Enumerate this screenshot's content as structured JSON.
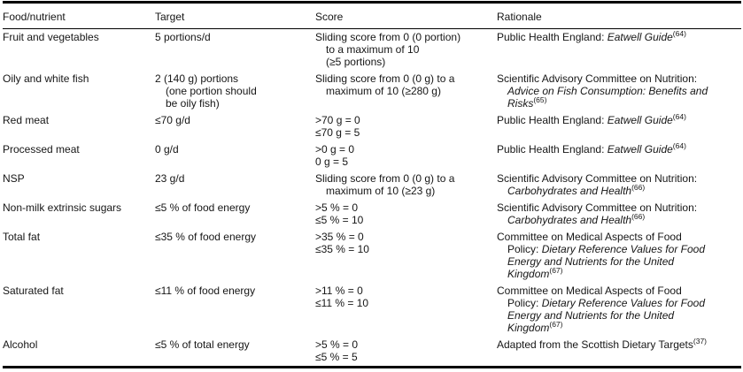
{
  "table": {
    "columns": [
      "Food/nutrient",
      "Target",
      "Score",
      "Rationale"
    ],
    "rows": [
      {
        "food": "Fruit and vegetables",
        "target": [
          {
            "indent": false,
            "parts": [
              {
                "text": "5 portions/d"
              }
            ]
          }
        ],
        "score": [
          {
            "indent": false,
            "parts": [
              {
                "text": "Sliding score from 0 (0 portion)"
              }
            ]
          },
          {
            "indent": true,
            "parts": [
              {
                "text": "to a maximum of 10"
              }
            ]
          },
          {
            "indent": true,
            "parts": [
              {
                "text": "(≥5 portions)"
              }
            ]
          }
        ],
        "rationale": [
          {
            "indent": false,
            "parts": [
              {
                "text": "Public Health England: "
              },
              {
                "text": "Eatwell Guide",
                "italic": true
              },
              {
                "text": "(64)",
                "sup": true
              }
            ]
          }
        ]
      },
      {
        "food": "Oily and white fish",
        "target": [
          {
            "indent": false,
            "parts": [
              {
                "text": "2 (140 g) portions"
              }
            ]
          },
          {
            "indent": true,
            "parts": [
              {
                "text": "(one portion should"
              }
            ]
          },
          {
            "indent": true,
            "parts": [
              {
                "text": "be oily fish)"
              }
            ]
          }
        ],
        "score": [
          {
            "indent": false,
            "parts": [
              {
                "text": "Sliding score from 0 (0 g) to a"
              }
            ]
          },
          {
            "indent": true,
            "parts": [
              {
                "text": "maximum of 10 (≥280 g)"
              }
            ]
          }
        ],
        "rationale": [
          {
            "indent": false,
            "parts": [
              {
                "text": "Scientific Advisory Committee on Nutrition:"
              }
            ]
          },
          {
            "indent": true,
            "parts": [
              {
                "text": "Advice on Fish Consumption: Benefits and",
                "italic": true
              }
            ]
          },
          {
            "indent": true,
            "parts": [
              {
                "text": "Risks",
                "italic": true
              },
              {
                "text": "(65)",
                "sup": true
              }
            ]
          }
        ]
      },
      {
        "food": "Red meat",
        "target": [
          {
            "indent": false,
            "parts": [
              {
                "text": "≤70 g/d"
              }
            ]
          }
        ],
        "score": [
          {
            "indent": false,
            "parts": [
              {
                "text": ">70 g = 0"
              }
            ]
          },
          {
            "indent": false,
            "parts": [
              {
                "text": "≤70 g = 5"
              }
            ]
          }
        ],
        "rationale": [
          {
            "indent": false,
            "parts": [
              {
                "text": "Public Health England: "
              },
              {
                "text": "Eatwell Guide",
                "italic": true
              },
              {
                "text": "(64)",
                "sup": true
              }
            ]
          }
        ]
      },
      {
        "food": "Processed meat",
        "target": [
          {
            "indent": false,
            "parts": [
              {
                "text": "0 g/d"
              }
            ]
          }
        ],
        "score": [
          {
            "indent": false,
            "parts": [
              {
                "text": ">0 g = 0"
              }
            ]
          },
          {
            "indent": false,
            "parts": [
              {
                "text": "0 g = 5"
              }
            ]
          }
        ],
        "rationale": [
          {
            "indent": false,
            "parts": [
              {
                "text": "Public Health England: "
              },
              {
                "text": "Eatwell Guide",
                "italic": true
              },
              {
                "text": "(64)",
                "sup": true
              }
            ]
          }
        ]
      },
      {
        "food": "NSP",
        "target": [
          {
            "indent": false,
            "parts": [
              {
                "text": "23 g/d"
              }
            ]
          }
        ],
        "score": [
          {
            "indent": false,
            "parts": [
              {
                "text": "Sliding score from 0 (0 g) to a"
              }
            ]
          },
          {
            "indent": true,
            "parts": [
              {
                "text": "maximum of 10 (≥23 g)"
              }
            ]
          }
        ],
        "rationale": [
          {
            "indent": false,
            "parts": [
              {
                "text": "Scientific Advisory Committee on Nutrition:"
              }
            ]
          },
          {
            "indent": true,
            "parts": [
              {
                "text": "Carbohydrates and Health",
                "italic": true
              },
              {
                "text": "(66)",
                "sup": true
              }
            ]
          }
        ]
      },
      {
        "food": "Non-milk extrinsic sugars",
        "target": [
          {
            "indent": false,
            "parts": [
              {
                "text": "≤5 % of food energy"
              }
            ]
          }
        ],
        "score": [
          {
            "indent": false,
            "parts": [
              {
                "text": ">5 % = 0"
              }
            ]
          },
          {
            "indent": false,
            "parts": [
              {
                "text": "≤5 % = 10"
              }
            ]
          }
        ],
        "rationale": [
          {
            "indent": false,
            "parts": [
              {
                "text": "Scientific Advisory Committee on Nutrition:"
              }
            ]
          },
          {
            "indent": true,
            "parts": [
              {
                "text": "Carbohydrates and Health",
                "italic": true
              },
              {
                "text": "(66)",
                "sup": true
              }
            ]
          }
        ]
      },
      {
        "food": "Total fat",
        "target": [
          {
            "indent": false,
            "parts": [
              {
                "text": "≤35 % of food energy"
              }
            ]
          }
        ],
        "score": [
          {
            "indent": false,
            "parts": [
              {
                "text": ">35 % = 0"
              }
            ]
          },
          {
            "indent": false,
            "parts": [
              {
                "text": "≤35 % = 10"
              }
            ]
          }
        ],
        "rationale": [
          {
            "indent": false,
            "parts": [
              {
                "text": "Committee on Medical Aspects of Food"
              }
            ]
          },
          {
            "indent": true,
            "parts": [
              {
                "text": "Policy: "
              },
              {
                "text": "Dietary Reference Values for Food",
                "italic": true
              }
            ]
          },
          {
            "indent": true,
            "parts": [
              {
                "text": "Energy and Nutrients for the United",
                "italic": true
              }
            ]
          },
          {
            "indent": true,
            "parts": [
              {
                "text": "Kingdom",
                "italic": true
              },
              {
                "text": "(67)",
                "sup": true
              }
            ]
          }
        ]
      },
      {
        "food": "Saturated fat",
        "target": [
          {
            "indent": false,
            "parts": [
              {
                "text": "≤11 % of food energy"
              }
            ]
          }
        ],
        "score": [
          {
            "indent": false,
            "parts": [
              {
                "text": ">11 % = 0"
              }
            ]
          },
          {
            "indent": false,
            "parts": [
              {
                "text": "≤11 % = 10"
              }
            ]
          }
        ],
        "rationale": [
          {
            "indent": false,
            "parts": [
              {
                "text": "Committee on Medical Aspects of Food"
              }
            ]
          },
          {
            "indent": true,
            "parts": [
              {
                "text": "Policy: "
              },
              {
                "text": "Dietary Reference Values for Food",
                "italic": true
              }
            ]
          },
          {
            "indent": true,
            "parts": [
              {
                "text": "Energy and Nutrients for the United",
                "italic": true
              }
            ]
          },
          {
            "indent": true,
            "parts": [
              {
                "text": "Kingdom",
                "italic": true
              },
              {
                "text": "(67)",
                "sup": true
              }
            ]
          }
        ]
      },
      {
        "food": "Alcohol",
        "target": [
          {
            "indent": false,
            "parts": [
              {
                "text": "≤5 % of total energy"
              }
            ]
          }
        ],
        "score": [
          {
            "indent": false,
            "parts": [
              {
                "text": ">5 % = 0"
              }
            ]
          },
          {
            "indent": false,
            "parts": [
              {
                "text": "≤5 % = 5"
              }
            ]
          }
        ],
        "rationale": [
          {
            "indent": false,
            "parts": [
              {
                "text": "Adapted from the Scottish Dietary Targets"
              },
              {
                "text": "(37)",
                "sup": true
              }
            ]
          }
        ]
      }
    ]
  }
}
